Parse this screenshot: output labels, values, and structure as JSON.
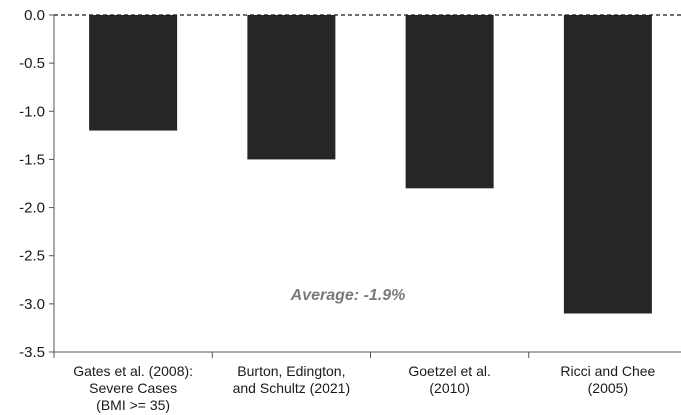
{
  "chart_data": {
    "type": "bar",
    "categories": [
      [
        "Gates et al. (2008):",
        "Severe Cases",
        "(BMI >= 35)"
      ],
      [
        "Burton, Edington,",
        "and Schultz (2021)"
      ],
      [
        "Goetzel et al.",
        "(2010)"
      ],
      [
        "Ricci and Chee",
        "(2005)"
      ]
    ],
    "values": [
      -1.2,
      -1.5,
      -1.8,
      -3.1
    ],
    "ylim": [
      -3.5,
      0.0
    ],
    "yticks": [
      "0.0",
      "-0.5",
      "-1.0",
      "-1.5",
      "-2.0",
      "-2.5",
      "-3.0",
      "-3.5"
    ],
    "ytick_values": [
      0.0,
      -0.5,
      -1.0,
      -1.5,
      -2.0,
      -2.5,
      -3.0,
      -3.5
    ],
    "zero_line": "dashed",
    "bar_color": "#262626",
    "annotation": "Average: -1.9%",
    "annotation_color": "#7a7a7a",
    "grid": false
  }
}
